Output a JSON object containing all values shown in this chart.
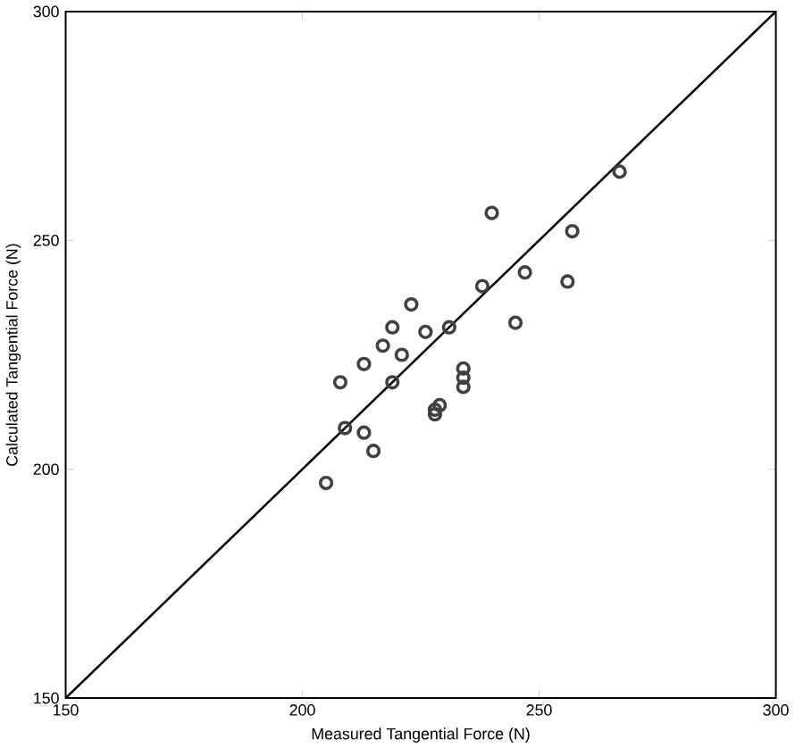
{
  "chart_data": {
    "type": "scatter",
    "xlabel": "Measured Tangential Force (N)",
    "ylabel": "Calculated Tangential Force (N)",
    "xlim": [
      150,
      300
    ],
    "ylim": [
      150,
      300
    ],
    "xticks": [
      150,
      200,
      250,
      300
    ],
    "yticks": [
      150,
      200,
      250,
      300
    ],
    "grid": false,
    "series": [
      {
        "marker": "circle",
        "color": "#404040",
        "x": [
          205,
          208,
          209,
          213,
          213,
          215,
          217,
          219,
          219,
          221,
          223,
          226,
          228,
          228,
          229,
          231,
          234,
          234,
          234,
          238,
          240,
          245,
          247,
          256,
          257,
          267
        ],
        "values": [
          197,
          219,
          209,
          208,
          223,
          204,
          227,
          231,
          219,
          225,
          236,
          230,
          212,
          213,
          214,
          231,
          218,
          220,
          222,
          240,
          256,
          232,
          243,
          241,
          252,
          265
        ]
      },
      {
        "type": "line",
        "marker": "none",
        "color": "#000000",
        "x": [
          150,
          300
        ],
        "values": [
          150,
          300
        ]
      }
    ]
  }
}
